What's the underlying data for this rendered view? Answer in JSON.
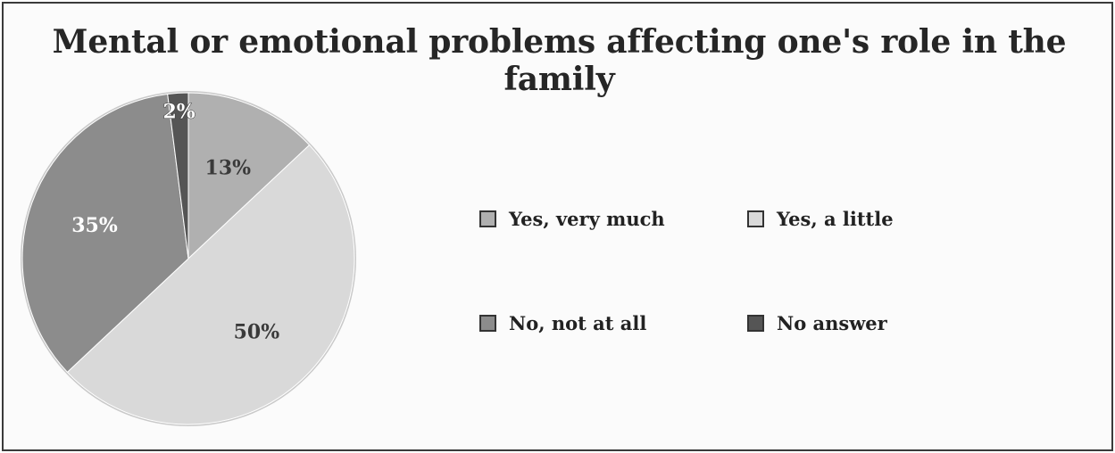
{
  "chart_data": {
    "type": "pie",
    "title": "Mental or emotional problems affecting one's role in the family",
    "categories": [
      "Yes, very much",
      "Yes, a little",
      "No, not at all",
      "No answer"
    ],
    "values": [
      13,
      50,
      35,
      2
    ],
    "labels": [
      "13%",
      "50%",
      "35%",
      "2%"
    ],
    "colors": [
      "#b0b0b0",
      "#d9d9d9",
      "#8c8c8c",
      "#555555"
    ],
    "legend_position": "right"
  }
}
